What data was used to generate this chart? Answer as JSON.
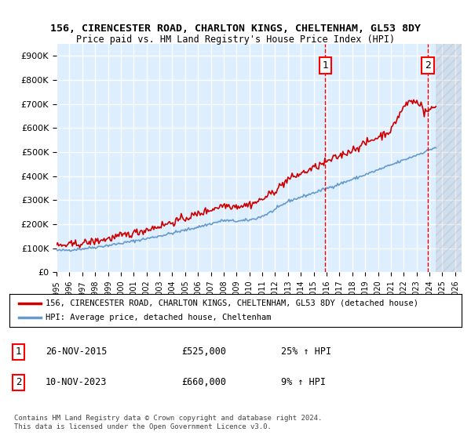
{
  "title1": "156, CIRENCESTER ROAD, CHARLTON KINGS, CHELTENHAM, GL53 8DY",
  "title2": "Price paid vs. HM Land Registry's House Price Index (HPI)",
  "ylabel_ticks": [
    "£0",
    "£100K",
    "£200K",
    "£300K",
    "£400K",
    "£500K",
    "£600K",
    "£700K",
    "£800K",
    "£900K"
  ],
  "ytick_vals": [
    0,
    100000,
    200000,
    300000,
    400000,
    500000,
    600000,
    700000,
    800000,
    900000
  ],
  "ylim": [
    0,
    950000
  ],
  "xlim_start": 1995.0,
  "xlim_end": 2026.5,
  "hpi_future_start": 2024.5,
  "transaction1": {
    "date": "26-NOV-2015",
    "price": 525000,
    "pct": "25%",
    "dir": "↑",
    "x": 2015.9
  },
  "transaction2": {
    "date": "10-NOV-2023",
    "price": 660000,
    "pct": "9%",
    "dir": "↑",
    "x": 2023.87
  },
  "red_line_color": "#cc0000",
  "blue_line_color": "#6699cc",
  "bg_color": "#ddeeff",
  "grid_color": "#ffffff",
  "hatch_color": "#cccccc",
  "legend_label_red": "156, CIRENCESTER ROAD, CHARLTON KINGS, CHELTENHAM, GL53 8DY (detached house)",
  "legend_label_blue": "HPI: Average price, detached house, Cheltenham",
  "footer": "Contains HM Land Registry data © Crown copyright and database right 2024.\nThis data is licensed under the Open Government Licence v3.0.",
  "table_rows": [
    {
      "num": "1",
      "date": "26-NOV-2015",
      "price": "£525,000",
      "pct": "25% ↑ HPI"
    },
    {
      "num": "2",
      "date": "10-NOV-2023",
      "price": "£660,000",
      "pct": "9% ↑ HPI"
    }
  ]
}
